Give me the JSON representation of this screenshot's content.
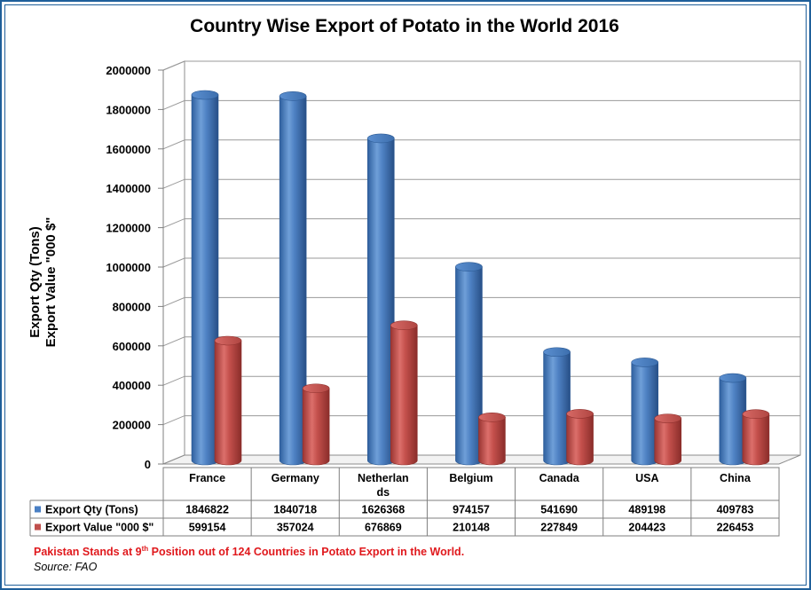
{
  "chart_data": {
    "type": "bar",
    "title": "Country Wise Export of Potato in the World 2016",
    "ylabel_line1": "Export Qty  (Tons)",
    "ylabel_line2": "Export Value \"000 $\"",
    "ylim": [
      0,
      2000000
    ],
    "yticks": [
      "0",
      "200000",
      "400000",
      "600000",
      "800000",
      "1000000",
      "1200000",
      "1400000",
      "1600000",
      "1800000",
      "2000000"
    ],
    "grid": true,
    "legend_placement": "data-table-left",
    "categories": [
      "France",
      "Germany",
      "Netherlands",
      "Belgium",
      "Canada",
      "USA",
      "China"
    ],
    "category_labels": [
      [
        "France"
      ],
      [
        "Germany"
      ],
      [
        "Netherlan",
        "ds"
      ],
      [
        "Belgium"
      ],
      [
        "Canada"
      ],
      [
        "USA"
      ],
      [
        "China"
      ]
    ],
    "series": [
      {
        "name": "Export Qty (Tons)",
        "color": "#4a7fc4",
        "values": [
          1846822,
          1840718,
          1626368,
          974157,
          541690,
          489198,
          409783
        ]
      },
      {
        "name": "Export Value \"000 $\"",
        "color": "#c0504d",
        "values": [
          599154,
          357024,
          676869,
          210148,
          227849,
          204423,
          226453
        ]
      }
    ]
  },
  "footnote": {
    "before": "Pakistan Stands at 9",
    "sup": "th",
    "after": " Position out of 124 Countries in Potato Export in the World."
  },
  "source": "Source: FAO"
}
